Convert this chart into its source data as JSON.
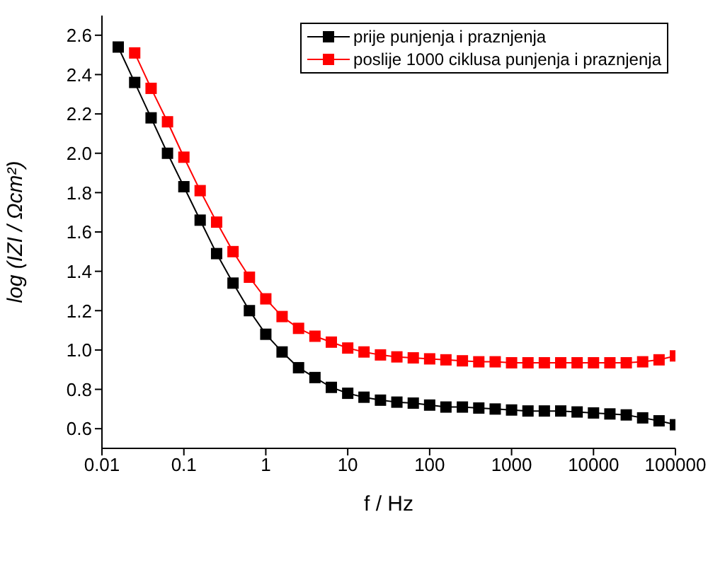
{
  "chart_data": {
    "type": "line",
    "xlabel": "f / Hz",
    "ylabel": "log (IZI / Ωcm²)",
    "log": "x",
    "xlim": [
      0.01,
      100000
    ],
    "xticks": [
      0.01,
      0.1,
      1,
      10,
      100,
      1000,
      10000,
      100000
    ],
    "ylim": [
      0.5,
      2.7
    ],
    "yticks": [
      0.6,
      0.8,
      {
        "value": 1,
        "label": "1.0"
      },
      1.2,
      1.4,
      1.6,
      1.8,
      {
        "value": 2,
        "label": "2.0"
      },
      2.2,
      2.4,
      2.6
    ],
    "grid": false,
    "legend": "top right",
    "marker": "square",
    "line_style": "solid",
    "series": [
      {
        "name": "prije punjenja i praznjenja",
        "color": "#000000",
        "x": [
          0.0158,
          0.0251,
          0.0398,
          0.0631,
          0.1,
          0.158,
          0.251,
          0.398,
          0.631,
          1,
          1.58,
          2.51,
          3.98,
          6.31,
          10,
          15.8,
          25.1,
          39.8,
          63.1,
          100,
          158,
          251,
          398,
          631,
          1000,
          1585,
          2512,
          3981,
          6310,
          10000,
          15849,
          25119,
          39811,
          63096,
          100000
        ],
        "values": [
          2.54,
          2.36,
          2.18,
          2.0,
          1.83,
          1.66,
          1.49,
          1.34,
          1.2,
          1.08,
          0.99,
          0.91,
          0.86,
          0.81,
          0.78,
          0.76,
          0.745,
          0.735,
          0.73,
          0.72,
          0.71,
          0.71,
          0.705,
          0.7,
          0.695,
          0.69,
          0.69,
          0.69,
          0.685,
          0.68,
          0.675,
          0.67,
          0.655,
          0.64,
          0.62
        ]
      },
      {
        "name": "poslije 1000 ciklusa punjenja i praznjenja",
        "color": "#ff0000",
        "x": [
          0.0251,
          0.0398,
          0.0631,
          0.1,
          0.158,
          0.251,
          0.398,
          0.631,
          1,
          1.58,
          2.51,
          3.98,
          6.31,
          10,
          15.8,
          25.1,
          39.8,
          63.1,
          100,
          158,
          251,
          398,
          631,
          1000,
          1585,
          2512,
          3981,
          6310,
          10000,
          15849,
          25119,
          39811,
          63096,
          100000
        ],
        "values": [
          2.51,
          2.33,
          2.16,
          1.98,
          1.81,
          1.65,
          1.5,
          1.37,
          1.26,
          1.17,
          1.11,
          1.07,
          1.04,
          1.01,
          0.99,
          0.975,
          0.965,
          0.96,
          0.955,
          0.95,
          0.945,
          0.94,
          0.94,
          0.935,
          0.935,
          0.935,
          0.935,
          0.935,
          0.935,
          0.935,
          0.935,
          0.94,
          0.95,
          0.97
        ]
      }
    ]
  }
}
